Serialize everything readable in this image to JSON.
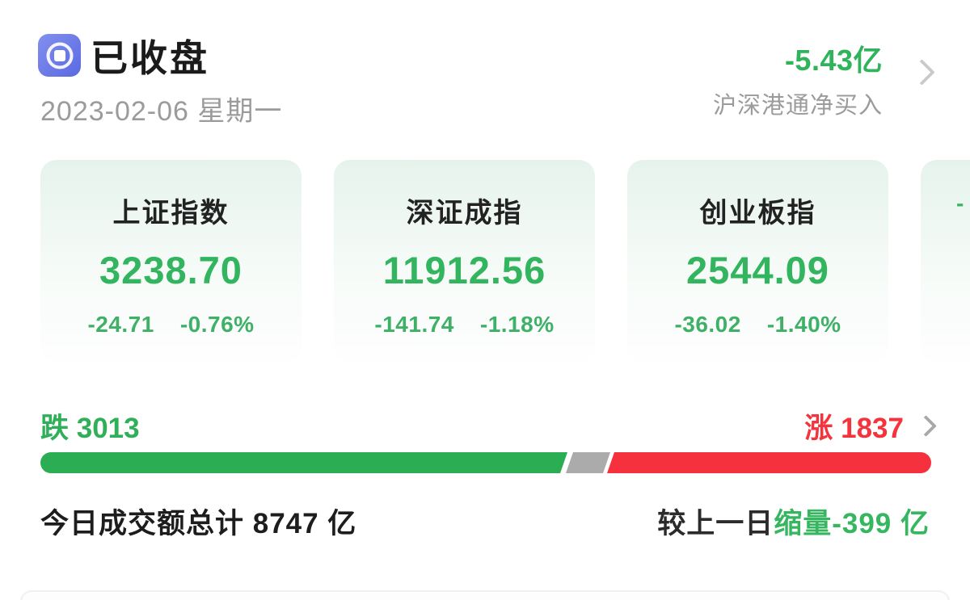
{
  "header": {
    "status_label": "已收盘",
    "date": "2023-02-06 星期一",
    "northbound": {
      "value": "-5.43亿",
      "label": "沪深港通净买入"
    }
  },
  "indices": [
    {
      "name": "上证指数",
      "value": "3238.70",
      "change": "-24.71",
      "change_pct": "-0.76%"
    },
    {
      "name": "深证成指",
      "value": "11912.56",
      "change": "-141.74",
      "change_pct": "-1.18%"
    },
    {
      "name": "创业板指",
      "value": "2544.09",
      "change": "-36.02",
      "change_pct": "-1.40%"
    },
    {
      "name": "",
      "value": "",
      "change": "-",
      "change_pct": ""
    }
  ],
  "breadth": {
    "down_text": "跌 3013",
    "up_text": "涨 1837",
    "down_count": 3013,
    "up_count": 1837,
    "bar_segments": {
      "down_pct": 59.2,
      "flat_pct": 4.6,
      "up_pct": 36.2
    }
  },
  "turnover": {
    "total_text": "今日成交额总计 8747 亿",
    "vs_prev_prefix": "较上一日",
    "vs_prev_green": "缩量-399 亿"
  },
  "icons": {
    "status_icon": "coin-record-icon",
    "chevron": "chevron-right-icon"
  },
  "colors": {
    "text_green": "#33b45f",
    "bar_green": "#2bad53",
    "text_red": "#f4333c",
    "bar_red": "#f5313d",
    "bar_gray": "#ababab",
    "muted_gray": "#9b9b9b",
    "icon_blue": "#6370e4",
    "text_black": "#1b1b1b"
  }
}
